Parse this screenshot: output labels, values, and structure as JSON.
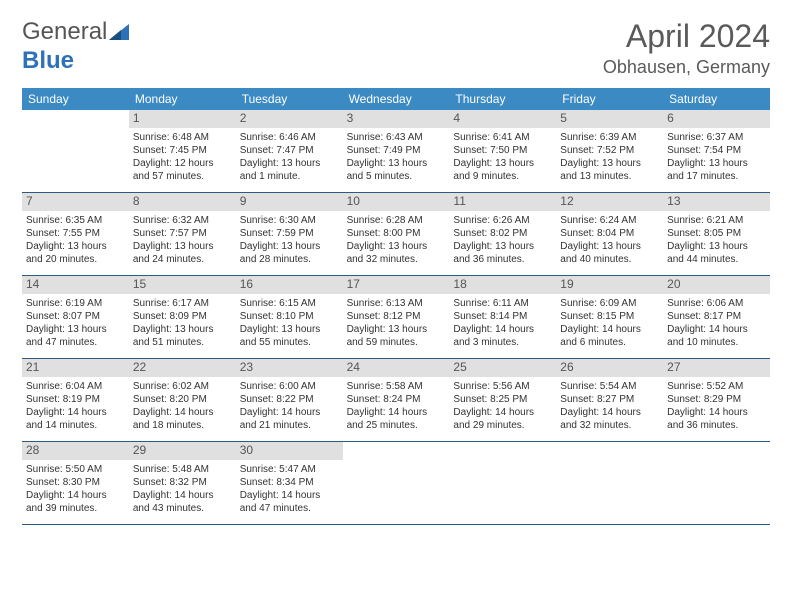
{
  "brand": {
    "text_a": "General",
    "text_b": "Blue"
  },
  "title": "April 2024",
  "location": "Obhausen, Germany",
  "day_headers": [
    "Sunday",
    "Monday",
    "Tuesday",
    "Wednesday",
    "Thursday",
    "Friday",
    "Saturday"
  ],
  "colors": {
    "header_bg": "#3b8ac4",
    "header_fg": "#ffffff",
    "daynum_bg": "#e0e0e0",
    "rule": "#2d5a80",
    "brand_blue": "#2d72b8",
    "text": "#333333"
  },
  "typography": {
    "month_fontsize": 32,
    "location_fontsize": 18,
    "dayhead_fontsize": 12,
    "cell_fontsize": 10
  },
  "weeks": [
    [
      {
        "n": "",
        "sunrise": "",
        "sunset": "",
        "daylight_a": "",
        "daylight_b": ""
      },
      {
        "n": "1",
        "sunrise": "Sunrise: 6:48 AM",
        "sunset": "Sunset: 7:45 PM",
        "daylight_a": "Daylight: 12 hours",
        "daylight_b": "and 57 minutes."
      },
      {
        "n": "2",
        "sunrise": "Sunrise: 6:46 AM",
        "sunset": "Sunset: 7:47 PM",
        "daylight_a": "Daylight: 13 hours",
        "daylight_b": "and 1 minute."
      },
      {
        "n": "3",
        "sunrise": "Sunrise: 6:43 AM",
        "sunset": "Sunset: 7:49 PM",
        "daylight_a": "Daylight: 13 hours",
        "daylight_b": "and 5 minutes."
      },
      {
        "n": "4",
        "sunrise": "Sunrise: 6:41 AM",
        "sunset": "Sunset: 7:50 PM",
        "daylight_a": "Daylight: 13 hours",
        "daylight_b": "and 9 minutes."
      },
      {
        "n": "5",
        "sunrise": "Sunrise: 6:39 AM",
        "sunset": "Sunset: 7:52 PM",
        "daylight_a": "Daylight: 13 hours",
        "daylight_b": "and 13 minutes."
      },
      {
        "n": "6",
        "sunrise": "Sunrise: 6:37 AM",
        "sunset": "Sunset: 7:54 PM",
        "daylight_a": "Daylight: 13 hours",
        "daylight_b": "and 17 minutes."
      }
    ],
    [
      {
        "n": "7",
        "sunrise": "Sunrise: 6:35 AM",
        "sunset": "Sunset: 7:55 PM",
        "daylight_a": "Daylight: 13 hours",
        "daylight_b": "and 20 minutes."
      },
      {
        "n": "8",
        "sunrise": "Sunrise: 6:32 AM",
        "sunset": "Sunset: 7:57 PM",
        "daylight_a": "Daylight: 13 hours",
        "daylight_b": "and 24 minutes."
      },
      {
        "n": "9",
        "sunrise": "Sunrise: 6:30 AM",
        "sunset": "Sunset: 7:59 PM",
        "daylight_a": "Daylight: 13 hours",
        "daylight_b": "and 28 minutes."
      },
      {
        "n": "10",
        "sunrise": "Sunrise: 6:28 AM",
        "sunset": "Sunset: 8:00 PM",
        "daylight_a": "Daylight: 13 hours",
        "daylight_b": "and 32 minutes."
      },
      {
        "n": "11",
        "sunrise": "Sunrise: 6:26 AM",
        "sunset": "Sunset: 8:02 PM",
        "daylight_a": "Daylight: 13 hours",
        "daylight_b": "and 36 minutes."
      },
      {
        "n": "12",
        "sunrise": "Sunrise: 6:24 AM",
        "sunset": "Sunset: 8:04 PM",
        "daylight_a": "Daylight: 13 hours",
        "daylight_b": "and 40 minutes."
      },
      {
        "n": "13",
        "sunrise": "Sunrise: 6:21 AM",
        "sunset": "Sunset: 8:05 PM",
        "daylight_a": "Daylight: 13 hours",
        "daylight_b": "and 44 minutes."
      }
    ],
    [
      {
        "n": "14",
        "sunrise": "Sunrise: 6:19 AM",
        "sunset": "Sunset: 8:07 PM",
        "daylight_a": "Daylight: 13 hours",
        "daylight_b": "and 47 minutes."
      },
      {
        "n": "15",
        "sunrise": "Sunrise: 6:17 AM",
        "sunset": "Sunset: 8:09 PM",
        "daylight_a": "Daylight: 13 hours",
        "daylight_b": "and 51 minutes."
      },
      {
        "n": "16",
        "sunrise": "Sunrise: 6:15 AM",
        "sunset": "Sunset: 8:10 PM",
        "daylight_a": "Daylight: 13 hours",
        "daylight_b": "and 55 minutes."
      },
      {
        "n": "17",
        "sunrise": "Sunrise: 6:13 AM",
        "sunset": "Sunset: 8:12 PM",
        "daylight_a": "Daylight: 13 hours",
        "daylight_b": "and 59 minutes."
      },
      {
        "n": "18",
        "sunrise": "Sunrise: 6:11 AM",
        "sunset": "Sunset: 8:14 PM",
        "daylight_a": "Daylight: 14 hours",
        "daylight_b": "and 3 minutes."
      },
      {
        "n": "19",
        "sunrise": "Sunrise: 6:09 AM",
        "sunset": "Sunset: 8:15 PM",
        "daylight_a": "Daylight: 14 hours",
        "daylight_b": "and 6 minutes."
      },
      {
        "n": "20",
        "sunrise": "Sunrise: 6:06 AM",
        "sunset": "Sunset: 8:17 PM",
        "daylight_a": "Daylight: 14 hours",
        "daylight_b": "and 10 minutes."
      }
    ],
    [
      {
        "n": "21",
        "sunrise": "Sunrise: 6:04 AM",
        "sunset": "Sunset: 8:19 PM",
        "daylight_a": "Daylight: 14 hours",
        "daylight_b": "and 14 minutes."
      },
      {
        "n": "22",
        "sunrise": "Sunrise: 6:02 AM",
        "sunset": "Sunset: 8:20 PM",
        "daylight_a": "Daylight: 14 hours",
        "daylight_b": "and 18 minutes."
      },
      {
        "n": "23",
        "sunrise": "Sunrise: 6:00 AM",
        "sunset": "Sunset: 8:22 PM",
        "daylight_a": "Daylight: 14 hours",
        "daylight_b": "and 21 minutes."
      },
      {
        "n": "24",
        "sunrise": "Sunrise: 5:58 AM",
        "sunset": "Sunset: 8:24 PM",
        "daylight_a": "Daylight: 14 hours",
        "daylight_b": "and 25 minutes."
      },
      {
        "n": "25",
        "sunrise": "Sunrise: 5:56 AM",
        "sunset": "Sunset: 8:25 PM",
        "daylight_a": "Daylight: 14 hours",
        "daylight_b": "and 29 minutes."
      },
      {
        "n": "26",
        "sunrise": "Sunrise: 5:54 AM",
        "sunset": "Sunset: 8:27 PM",
        "daylight_a": "Daylight: 14 hours",
        "daylight_b": "and 32 minutes."
      },
      {
        "n": "27",
        "sunrise": "Sunrise: 5:52 AM",
        "sunset": "Sunset: 8:29 PM",
        "daylight_a": "Daylight: 14 hours",
        "daylight_b": "and 36 minutes."
      }
    ],
    [
      {
        "n": "28",
        "sunrise": "Sunrise: 5:50 AM",
        "sunset": "Sunset: 8:30 PM",
        "daylight_a": "Daylight: 14 hours",
        "daylight_b": "and 39 minutes."
      },
      {
        "n": "29",
        "sunrise": "Sunrise: 5:48 AM",
        "sunset": "Sunset: 8:32 PM",
        "daylight_a": "Daylight: 14 hours",
        "daylight_b": "and 43 minutes."
      },
      {
        "n": "30",
        "sunrise": "Sunrise: 5:47 AM",
        "sunset": "Sunset: 8:34 PM",
        "daylight_a": "Daylight: 14 hours",
        "daylight_b": "and 47 minutes."
      },
      {
        "n": "",
        "sunrise": "",
        "sunset": "",
        "daylight_a": "",
        "daylight_b": ""
      },
      {
        "n": "",
        "sunrise": "",
        "sunset": "",
        "daylight_a": "",
        "daylight_b": ""
      },
      {
        "n": "",
        "sunrise": "",
        "sunset": "",
        "daylight_a": "",
        "daylight_b": ""
      },
      {
        "n": "",
        "sunrise": "",
        "sunset": "",
        "daylight_a": "",
        "daylight_b": ""
      }
    ]
  ]
}
